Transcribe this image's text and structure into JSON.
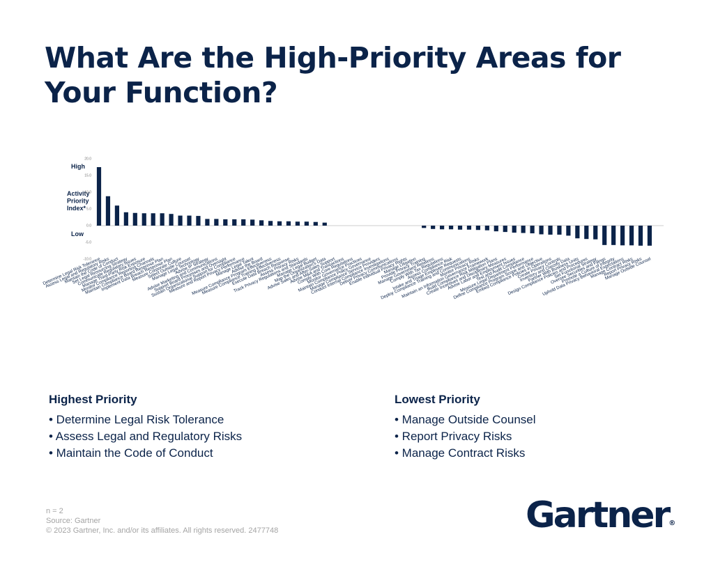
{
  "title": "What Are the High-Priority Areas for Your Function?",
  "chart_data": {
    "type": "bar",
    "y_axis_side_labels": [
      "High",
      "Activity Priority Index*",
      "Low"
    ],
    "yticks": [
      "20.0",
      "15.0",
      "10.0",
      "5.0",
      "0.0",
      "-5.0",
      "-10.0"
    ],
    "ylim": [
      -10,
      20
    ],
    "grid": false,
    "legend": "none",
    "color": "#0b2349",
    "categories": [
      "Determine Legal Risk Tolerance",
      "Assess Legal and Regulatory Risks",
      "Maintain the Code of Conduct",
      "Set Legal Resourcing Strategy",
      "Communicate Regulatory Issues",
      "Manage Third-Party Risk Exposure",
      "Monitor Compliance Reporting Channels",
      "Maintain Compliance Board Response Plan",
      "Implement Data Breach Response Plan",
      "Measure Corporate Culture",
      "Select Outside Counsel",
      "Manage Legal Technology",
      "Advise IP Strategy",
      "Advise Marketing and Communications",
      "Support Board Processes and Oversight",
      "Sustain Organizational Support for Compliance",
      "Measure and Report Privacy Performance",
      "Manage Legal Talent",
      "Advise the Board",
      "Measure Compliance Program Effectiveness",
      "Measure Compliance Training Effectiveness",
      "Execute Data Breach Response",
      "Assess Privacy Risks",
      "Track Privacy Regulations and Standards",
      "Manage Legal Budget",
      "Map the Organization's Data",
      "Advise Sales and After-Sales Support",
      "Advise M&A and Transactions",
      "Comply With Core Regulations",
      "Monitor Governance Practices",
      "Maintain Compliance Policy Governance",
      "Manage Compliance Service Providers",
      "Conduct Internal Compliance Investigations",
      "Deliver Privacy Communications",
      "Enable Individual Privacy Rights",
      "Manage Litigation",
      "Provide Privacy Training",
      "Manage Government Relations",
      "Comply With Tax Regulations",
      "Assess Compliance Risk",
      "Intake and Triage Employee Requests",
      "Deploy Compliance Training and Communications",
      "Monitor Privacy Risks",
      "Maintain an Information Governance Framework",
      "Build Compliance Risk Mitigation Plans",
      "Create Incentives and Disciplinary Measures",
      "Advise Labor and Employment Issues",
      "Test and Audit Compliance",
      "Measure Legal Department Performance",
      "Define Compliance Program Scope and Objective",
      "Embed Compliance Policies in Operations",
      "Create Privacy Controls",
      "Inventory and Classify Data",
      "Partner With Business Units",
      "Design Compliance Policies and Procedures",
      "Set Functional Strategy",
      "Oversee Securities and Filings",
      "Promote a Culture of Integrity",
      "Uphold Data Privacy Behavioral Expectations",
      "Manage Contract Risks",
      "Report Privacy Risks",
      "Manage Outside Counsel"
    ],
    "values": [
      17.5,
      8.8,
      6.0,
      4.0,
      3.8,
      3.7,
      3.7,
      3.7,
      3.5,
      3.0,
      3.0,
      2.9,
      2.0,
      2.0,
      1.9,
      1.9,
      1.9,
      1.8,
      1.6,
      1.4,
      1.3,
      1.3,
      1.2,
      1.2,
      1.1,
      0.9,
      0,
      0,
      0,
      0,
      0,
      0,
      0,
      0,
      0,
      0,
      -0.7,
      -1.0,
      -1.1,
      -1.1,
      -1.2,
      -1.2,
      -1.3,
      -1.4,
      -1.7,
      -1.9,
      -2.1,
      -2.2,
      -2.3,
      -2.6,
      -2.7,
      -2.7,
      -3.0,
      -3.8,
      -4.0,
      -4.1,
      -5.8,
      -5.8,
      -5.9,
      -5.9,
      -6.0,
      -6.0
    ]
  },
  "highest_priority": {
    "heading": "Highest Priority",
    "items": [
      "• Determine Legal Risk Tolerance",
      "• Assess Legal and Regulatory Risks",
      "• Maintain the Code of Conduct"
    ]
  },
  "lowest_priority": {
    "heading": "Lowest Priority",
    "items": [
      "• Manage Outside Counsel",
      "• Report Privacy Risks",
      "• Manage Contract Risks"
    ]
  },
  "footer": {
    "n": "n = 2",
    "source": "Source: Gartner",
    "copyright": "© 2023 Gartner, Inc. and/or its affiliates. All rights reserved. 2477748"
  },
  "logo": {
    "text": "Gartner",
    "reg": "®"
  }
}
